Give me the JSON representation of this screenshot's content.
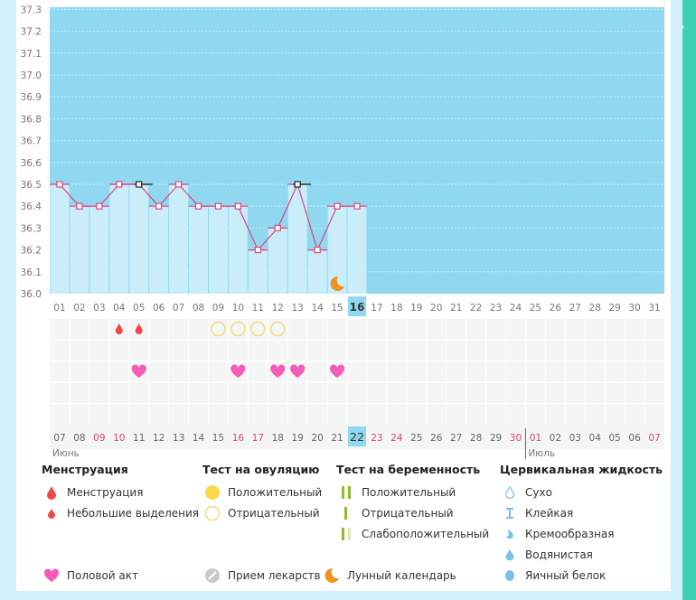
{
  "chart_data": {
    "type": "bar",
    "title": "",
    "ylabel": "",
    "ylim": [
      36.0,
      37.3
    ],
    "y_ticks": [
      "36.0",
      "36.1",
      "36.2",
      "36.3",
      "36.4",
      "36.5",
      "36.6",
      "36.7",
      "36.8",
      "36.9",
      "37.0",
      "37.1",
      "37.2",
      "37.3"
    ],
    "cycle_days": [
      "01",
      "02",
      "03",
      "04",
      "05",
      "06",
      "07",
      "08",
      "09",
      "10",
      "11",
      "12",
      "13",
      "14",
      "15",
      "16",
      "17",
      "18",
      "19",
      "20",
      "21",
      "22",
      "23",
      "24",
      "25",
      "26",
      "27",
      "28",
      "29",
      "30",
      "31"
    ],
    "today_index": 15,
    "temperatures": [
      36.5,
      36.4,
      36.4,
      36.5,
      36.5,
      36.4,
      36.5,
      36.4,
      36.4,
      36.4,
      36.2,
      36.3,
      36.5,
      36.2,
      36.4,
      36.4
    ],
    "marked_points": [
      5,
      13
    ],
    "moon_day": 15,
    "menstruation_light_days": [
      4,
      5
    ],
    "ovulation_negative_days": [
      9,
      10,
      11,
      12
    ],
    "intercourse_days": [
      5,
      10,
      12,
      13,
      15
    ],
    "dates": [
      "07",
      "08",
      "09",
      "10",
      "11",
      "12",
      "13",
      "14",
      "15",
      "16",
      "17",
      "18",
      "19",
      "20",
      "21",
      "22",
      "23",
      "24",
      "25",
      "26",
      "27",
      "28",
      "29",
      "30",
      "01",
      "02",
      "03",
      "04",
      "05",
      "06",
      "07"
    ],
    "weekend_date_indices": [
      2,
      3,
      9,
      10,
      16,
      17,
      23,
      24,
      30
    ],
    "months": [
      {
        "label": "Июнь",
        "start_index": 0
      },
      {
        "label": "Июль",
        "start_index": 24
      }
    ]
  },
  "colors": {
    "bg": "#8fd8f0",
    "bar": "#c9edf9",
    "line": "#e0457b",
    "today": "#8fd8f0",
    "weekend": "#e0457b"
  },
  "legend": {
    "menstruation": {
      "title": "Менструация",
      "items": [
        "Менструация",
        "Небольшие выделения"
      ]
    },
    "ovulation": {
      "title": "Тест на овуляцию",
      "items": [
        "Положительный",
        "Отрицательный"
      ]
    },
    "pregnancy": {
      "title": "Тест на беременность",
      "items": [
        "Положительный",
        "Отрицательный",
        "Слабоположительный"
      ]
    },
    "cervical": {
      "title": "Цервикальная жидкость",
      "items": [
        "Сухо",
        "Клейкая",
        "Кремообразная",
        "Водянистая",
        "Яичный белок"
      ]
    },
    "other": [
      "Половой акт",
      "Прием лекарств",
      "Лунный календарь"
    ]
  }
}
